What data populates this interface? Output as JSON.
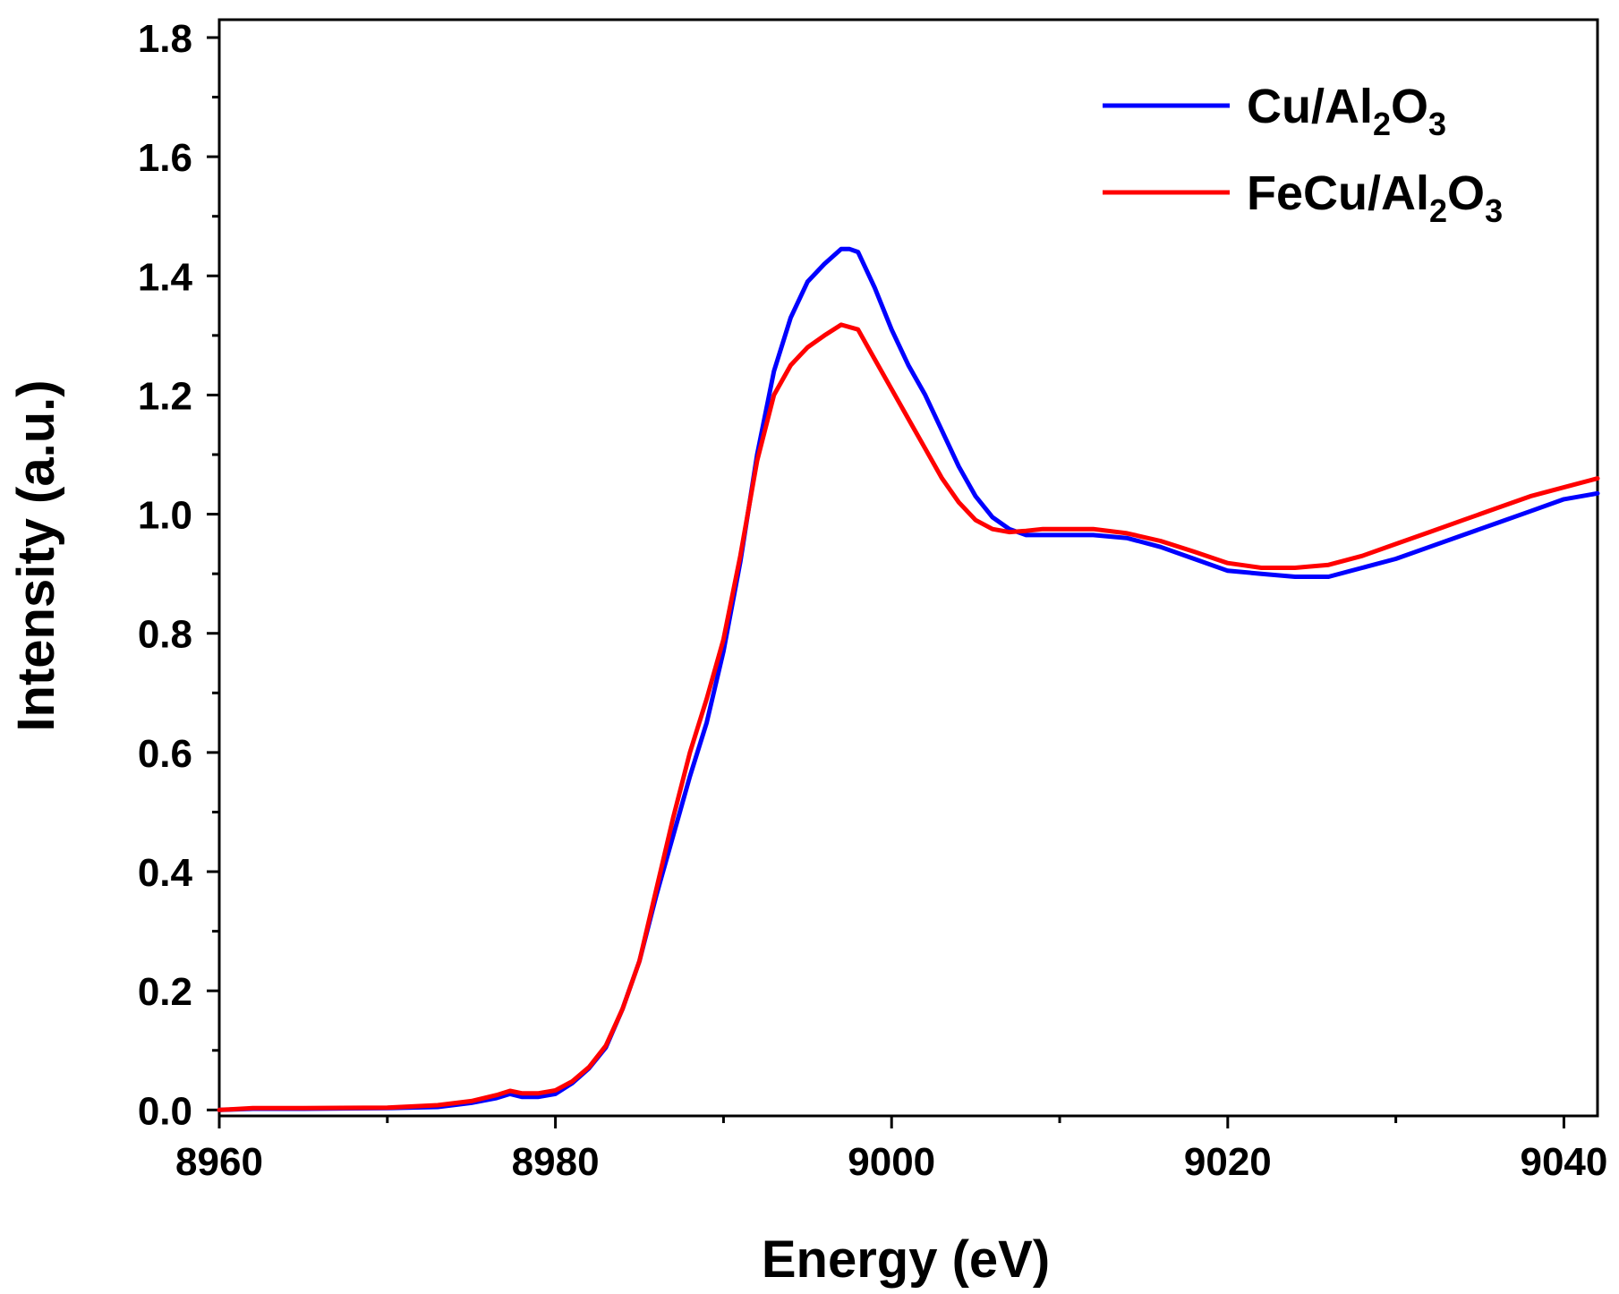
{
  "chart_data": {
    "type": "line",
    "title": "",
    "xlabel": "Energy (eV)",
    "ylabel": "Intensity (a.u.)",
    "xlim": [
      8960,
      9042
    ],
    "ylim": [
      -0.01,
      1.83
    ],
    "xticks": [
      8960,
      8980,
      9000,
      9020,
      9040
    ],
    "xtick_labels": [
      "8960",
      "8980",
      "9000",
      "9020",
      "9040"
    ],
    "yticks": [
      0.0,
      0.2,
      0.4,
      0.6,
      0.8,
      1.0,
      1.2,
      1.4,
      1.6,
      1.8
    ],
    "ytick_labels": [
      "0.0",
      "0.2",
      "0.4",
      "0.6",
      "0.8",
      "1.0",
      "1.2",
      "1.4",
      "1.6",
      "1.8"
    ],
    "grid": false,
    "legend_position": "top-right",
    "series": [
      {
        "name": "Cu/Al2O3",
        "label_parts": [
          "Cu/Al",
          "2",
          "O",
          "3"
        ],
        "color": "#0000ff",
        "x": [
          8960,
          8962,
          8965,
          8970,
          8973,
          8975,
          8976.5,
          8977.3,
          8978,
          8979,
          8980,
          8981,
          8982,
          8983,
          8984,
          8985,
          8986,
          8987,
          8988,
          8989,
          8990,
          8991,
          8992,
          8993,
          8994,
          8995,
          8996,
          8997,
          8997.5,
          8998,
          8999,
          9000,
          9001,
          9002,
          9003,
          9004,
          9005,
          9006,
          9007,
          9008,
          9009,
          9010,
          9012,
          9014,
          9016,
          9018,
          9020,
          9022,
          9024,
          9026,
          9028,
          9030,
          9032,
          9034,
          9036,
          9038,
          9040,
          9042
        ],
        "values": [
          0.0,
          0.002,
          0.002,
          0.003,
          0.005,
          0.012,
          0.02,
          0.027,
          0.022,
          0.022,
          0.027,
          0.045,
          0.07,
          0.105,
          0.17,
          0.25,
          0.36,
          0.46,
          0.56,
          0.65,
          0.77,
          0.92,
          1.1,
          1.24,
          1.33,
          1.39,
          1.42,
          1.445,
          1.445,
          1.44,
          1.38,
          1.31,
          1.25,
          1.2,
          1.14,
          1.08,
          1.03,
          0.995,
          0.975,
          0.965,
          0.965,
          0.965,
          0.965,
          0.96,
          0.945,
          0.925,
          0.905,
          0.9,
          0.895,
          0.895,
          0.91,
          0.925,
          0.945,
          0.965,
          0.985,
          1.005,
          1.025,
          1.035
        ]
      },
      {
        "name": "FeCu/Al2O3",
        "label_parts": [
          "FeCu/Al",
          "2",
          "O",
          "3"
        ],
        "color": "#ff0000",
        "x": [
          8960,
          8962,
          8965,
          8970,
          8973,
          8975,
          8976.5,
          8977.3,
          8978,
          8979,
          8980,
          8981,
          8982,
          8983,
          8984,
          8985,
          8986,
          8987,
          8988,
          8989,
          8990,
          8991,
          8992,
          8993,
          8994,
          8995,
          8996,
          8997,
          8998,
          8999,
          9000,
          9001,
          9002,
          9003,
          9004,
          9005,
          9006,
          9007,
          9008,
          9009,
          9010,
          9012,
          9014,
          9016,
          9018,
          9020,
          9022,
          9024,
          9026,
          9028,
          9030,
          9032,
          9034,
          9036,
          9038,
          9040,
          9042
        ],
        "values": [
          0.0,
          0.003,
          0.003,
          0.004,
          0.008,
          0.015,
          0.025,
          0.032,
          0.028,
          0.028,
          0.033,
          0.048,
          0.072,
          0.108,
          0.17,
          0.25,
          0.37,
          0.49,
          0.6,
          0.69,
          0.79,
          0.93,
          1.09,
          1.2,
          1.25,
          1.28,
          1.3,
          1.318,
          1.31,
          1.26,
          1.21,
          1.16,
          1.11,
          1.06,
          1.02,
          0.99,
          0.975,
          0.97,
          0.972,
          0.975,
          0.975,
          0.975,
          0.968,
          0.955,
          0.937,
          0.918,
          0.91,
          0.91,
          0.915,
          0.93,
          0.95,
          0.97,
          0.99,
          1.01,
          1.03,
          1.045,
          1.06
        ]
      }
    ]
  }
}
